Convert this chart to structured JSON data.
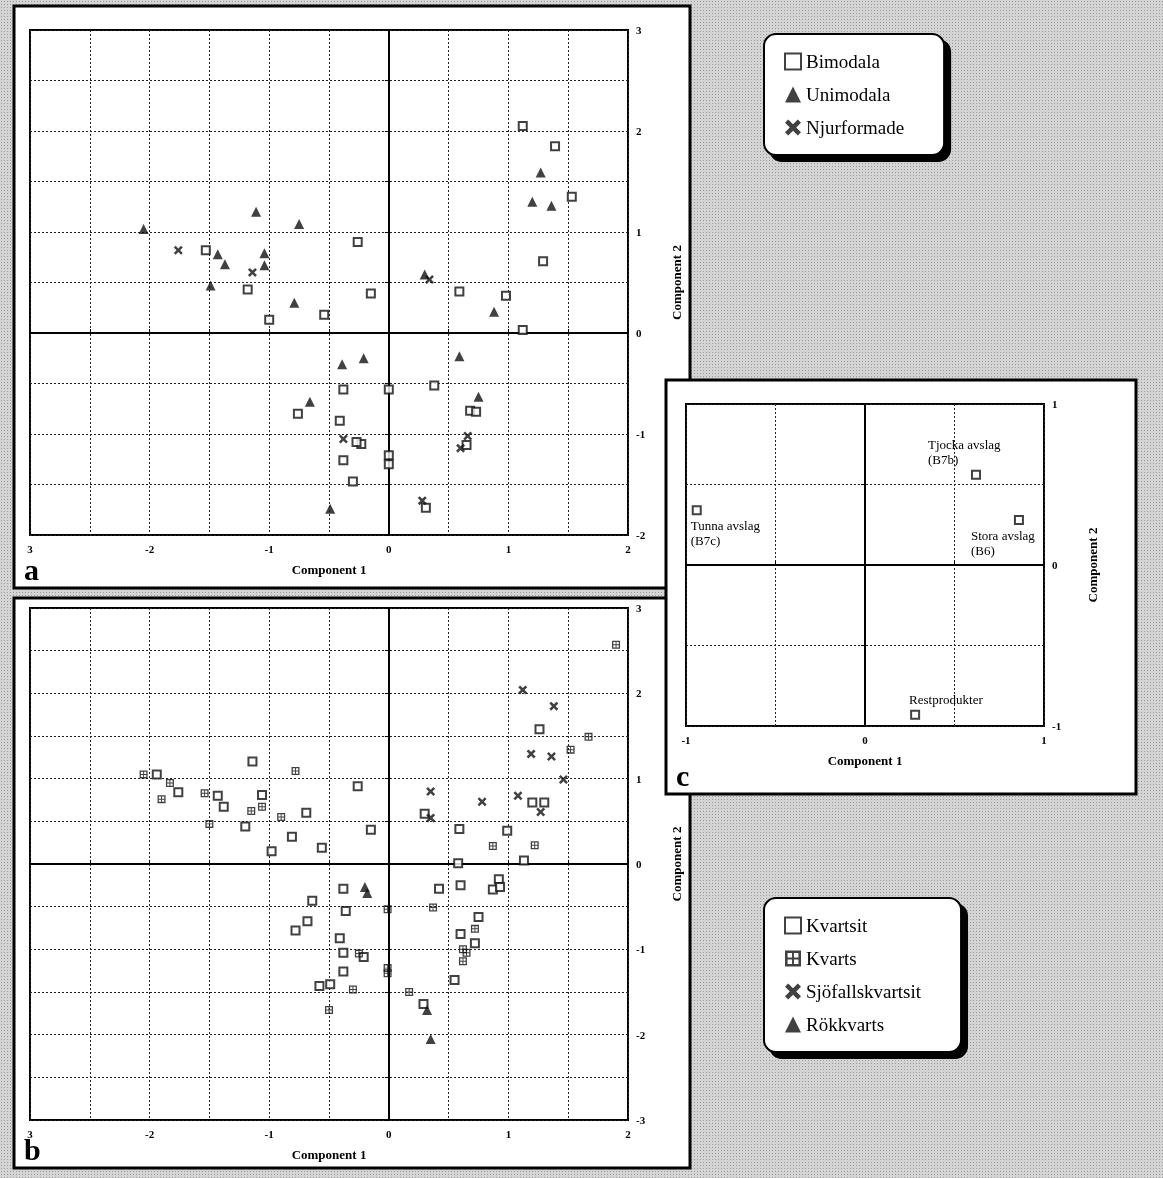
{
  "chart_data": [
    {
      "type": "scatter",
      "xlabel": "Component 1",
      "ylabel": "Component 2",
      "annotations": [
        "a"
      ],
      "legend": "top right",
      "grid": true,
      "xlim": [
        -3,
        2
      ],
      "ylim": [
        -2,
        3
      ],
      "xticks": [
        {
          "value": -3,
          "label": "3"
        },
        {
          "value": -2.5,
          "label": null
        },
        -2,
        {
          "value": -1.5,
          "label": null
        },
        -1,
        {
          "value": -0.5,
          "label": null
        },
        0,
        {
          "value": 0.5,
          "label": null
        },
        1,
        {
          "value": 1.5,
          "label": null
        },
        2
      ],
      "yticks": [
        -2,
        {
          "value": -1.5,
          "label": null
        },
        -1,
        {
          "value": -0.5,
          "label": null
        },
        0,
        {
          "value": 0.5,
          "label": null
        },
        1,
        {
          "value": 1.5,
          "label": null
        },
        2,
        {
          "value": 2.5,
          "label": null
        },
        3
      ],
      "series": [
        {
          "name": "Bimodala",
          "color": "#111111",
          "marker": "square",
          "x": [
            -1.53,
            -1.18,
            -1.0,
            -0.54,
            -0.76,
            -0.38,
            -0.41,
            -0.38,
            -0.26,
            -0.15,
            0.59,
            0.98,
            1.12,
            1.12,
            1.39,
            1.53,
            1.29,
            0.0,
            0.38,
            0.68,
            0.73,
            -0.23,
            -0.27,
            0.0,
            0.0,
            -0.3,
            0.31,
            0.65
          ],
          "values": [
            0.82,
            0.43,
            0.13,
            0.18,
            -0.8,
            -0.56,
            -0.87,
            -1.26,
            0.9,
            0.39,
            0.41,
            0.37,
            0.03,
            2.05,
            1.85,
            1.35,
            0.71,
            -0.56,
            -0.52,
            -0.77,
            -0.78,
            -1.1,
            -1.08,
            -1.21,
            -1.3,
            -1.47,
            -1.73,
            -1.11
          ]
        },
        {
          "name": "Unimodala",
          "color": "#111111",
          "marker": "triangle",
          "x": [
            -2.05,
            -1.11,
            -0.75,
            -1.43,
            -1.37,
            -1.04,
            -1.04,
            -1.49,
            -0.79,
            -0.39,
            -0.66,
            -0.49,
            1.27,
            1.2,
            1.36,
            0.3,
            0.88,
            -0.21,
            0.59,
            0.75
          ],
          "values": [
            1.03,
            1.2,
            1.08,
            0.78,
            0.68,
            0.79,
            0.67,
            0.47,
            0.3,
            -0.31,
            -0.68,
            -1.74,
            1.59,
            1.3,
            1.26,
            0.58,
            0.21,
            -0.25,
            -0.23,
            -0.63
          ]
        },
        {
          "name": "Njurformade",
          "color": "#111111",
          "marker": "cross",
          "x": [
            -1.76,
            -1.14,
            -0.38,
            0.34,
            0.28,
            0.6,
            0.66
          ],
          "values": [
            0.82,
            0.6,
            -1.05,
            0.53,
            -1.66,
            -1.14,
            -1.02
          ]
        }
      ]
    },
    {
      "type": "scatter",
      "xlabel": "Component 1",
      "ylabel": "Component 2",
      "annotations": [
        "b"
      ],
      "legend": "bottom right",
      "grid": true,
      "xlim": [
        -3,
        2
      ],
      "ylim": [
        -3,
        3
      ],
      "xticks": [
        {
          "value": -3,
          "label": "3"
        },
        {
          "value": -2.5,
          "label": null
        },
        -2,
        {
          "value": -1.5,
          "label": null
        },
        -1,
        {
          "value": -0.5,
          "label": null
        },
        0,
        {
          "value": 0.5,
          "label": null
        },
        1,
        {
          "value": 1.5,
          "label": null
        },
        2
      ],
      "yticks": [
        -3,
        {
          "value": -2.5,
          "label": null
        },
        -2,
        {
          "value": -1.5,
          "label": null
        },
        -1,
        {
          "value": -0.5,
          "label": null
        },
        0,
        {
          "value": 0.5,
          "label": null
        },
        1,
        {
          "value": 1.5,
          "label": null
        },
        2,
        {
          "value": 2.5,
          "label": null
        },
        3
      ],
      "series": [
        {
          "name": "Kvartsit",
          "color": "#111111",
          "marker": "square",
          "x": [
            -1.94,
            -1.76,
            -1.43,
            -1.38,
            -1.14,
            -1.06,
            -1.2,
            -0.69,
            -0.81,
            -0.98,
            -0.56,
            -0.64,
            -0.68,
            -0.78,
            -0.58,
            -0.49,
            -0.38,
            -0.36,
            -0.41,
            -0.38,
            -0.38,
            -0.26,
            -0.15,
            -0.21,
            0.42,
            0.29,
            0.3,
            0.59,
            0.58,
            0.6,
            0.6,
            0.55,
            0.72,
            0.75,
            0.99,
            0.87,
            0.92,
            0.93,
            1.26,
            1.2,
            1.3,
            1.13
          ],
          "values": [
            1.05,
            0.84,
            0.8,
            0.67,
            1.2,
            0.81,
            0.44,
            0.6,
            0.32,
            0.15,
            0.19,
            -0.43,
            -0.67,
            -0.78,
            -1.43,
            -1.41,
            -0.29,
            -0.55,
            -0.87,
            -1.04,
            -1.26,
            0.91,
            0.4,
            -1.09,
            -0.29,
            -1.64,
            0.59,
            0.41,
            0.01,
            -0.25,
            -0.82,
            -1.36,
            -0.93,
            -0.62,
            0.39,
            -0.3,
            -0.18,
            -0.27,
            1.58,
            0.72,
            0.72,
            0.04
          ]
        },
        {
          "name": "Kvarts",
          "color": "#111111",
          "marker": "square",
          "x": [
            -2.05,
            -1.83,
            -1.9,
            -1.54,
            -1.5,
            -0.78,
            -1.06,
            -1.15,
            -0.9,
            -0.5,
            -0.3,
            -0.25,
            -0.01,
            -0.01,
            -0.01,
            0.17,
            0.37,
            0.62,
            0.65,
            0.62,
            0.72,
            0.87,
            1.67,
            1.52,
            1.22,
            1.9
          ],
          "values": [
            1.05,
            0.95,
            0.76,
            0.83,
            0.47,
            1.09,
            0.67,
            0.62,
            0.55,
            -1.71,
            -1.47,
            -1.05,
            -0.53,
            -1.22,
            -1.28,
            -1.5,
            -0.51,
            -1.0,
            -1.04,
            -1.14,
            -0.76,
            0.21,
            1.49,
            1.34,
            0.22,
            2.57
          ]
        },
        {
          "name": "Sjöfallskvartsit",
          "color": "#111111",
          "marker": "cross",
          "x": [
            0.35,
            0.35,
            0.78,
            1.12,
            1.38,
            1.19,
            1.36,
            1.46,
            1.08,
            1.27
          ],
          "values": [
            0.85,
            0.54,
            0.73,
            2.04,
            1.85,
            1.29,
            1.26,
            0.99,
            0.8,
            0.61
          ]
        },
        {
          "name": "Rökkvarts",
          "color": "#111111",
          "marker": "triangle",
          "x": [
            -0.2,
            -0.18,
            0.32,
            0.35
          ],
          "values": [
            -0.27,
            -0.34,
            -1.71,
            -2.05
          ]
        }
      ]
    },
    {
      "type": "scatter",
      "xlabel": "Component 1",
      "ylabel": "Component 2",
      "grid": true,
      "annotations": [
        "c",
        {
          "text": "Tjocka avslag\n(B7b)",
          "x": 0.62,
          "y": 0.56
        },
        {
          "text": "Tunna avslag\n(B7c)",
          "x": -0.94,
          "y": 0.34
        },
        {
          "text": "Stora avslag\n(B6)",
          "x": 0.86,
          "y": 0.28
        },
        {
          "text": "Restprodukter",
          "x": 0.28,
          "y": -0.93
        }
      ],
      "xlim": [
        -1,
        1
      ],
      "ylim": [
        -1,
        1
      ],
      "xticks": [
        -1,
        {
          "value": -0.5,
          "label": null
        },
        0,
        {
          "value": 0.5,
          "label": null
        },
        1
      ],
      "yticks": [
        -1,
        {
          "value": -0.5,
          "label": null
        },
        0,
        {
          "value": 0.5,
          "label": null
        },
        1
      ],
      "series": [
        {
          "color": "#111111",
          "marker": "square",
          "x": [
            -0.94,
            0.62,
            0.86,
            0.28
          ],
          "values": [
            0.34,
            0.56,
            0.28,
            -0.93
          ]
        }
      ]
    }
  ]
}
